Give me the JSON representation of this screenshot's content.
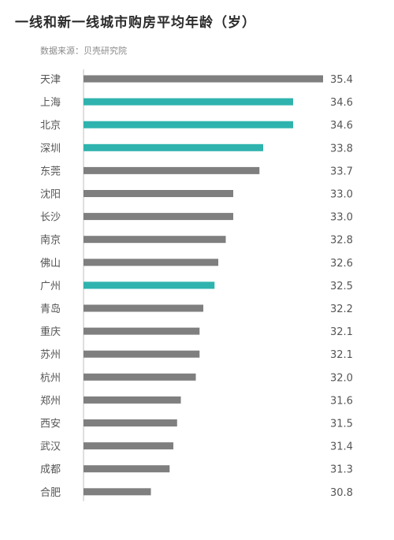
{
  "title": "一线和新一线城市购房平均年龄（岁）",
  "source": "数据来源：贝壳研究院",
  "colors": {
    "default_bar": "#7f7f7f",
    "highlight_bar": "#2fb3ae"
  },
  "chart_data": {
    "type": "bar",
    "orientation": "horizontal",
    "title": "一线和新一线城市购房平均年龄（岁）",
    "xlabel": "",
    "ylabel": "",
    "categories": [
      "天津",
      "上海",
      "北京",
      "深圳",
      "东莞",
      "沈阳",
      "长沙",
      "南京",
      "佛山",
      "广州",
      "青岛",
      "重庆",
      "苏州",
      "杭州",
      "郑州",
      "西安",
      "武汉",
      "成都",
      "合肥"
    ],
    "values": [
      35.4,
      34.6,
      34.6,
      33.8,
      33.7,
      33.0,
      33.0,
      32.8,
      32.6,
      32.5,
      32.2,
      32.1,
      32.1,
      32.0,
      31.6,
      31.5,
      31.4,
      31.3,
      30.8
    ],
    "value_labels": [
      "35.4",
      "34.6",
      "34.6",
      "33.8",
      "33.7",
      "33.0",
      "33.0",
      "32.8",
      "32.6",
      "32.5",
      "32.2",
      "32.1",
      "32.1",
      "32.0",
      "31.6",
      "31.5",
      "31.4",
      "31.3",
      "30.8"
    ],
    "highlighted": [
      "上海",
      "北京",
      "深圳",
      "广州"
    ],
    "xlim": [
      29.0,
      35.4
    ],
    "grid": false,
    "legend": "none"
  }
}
